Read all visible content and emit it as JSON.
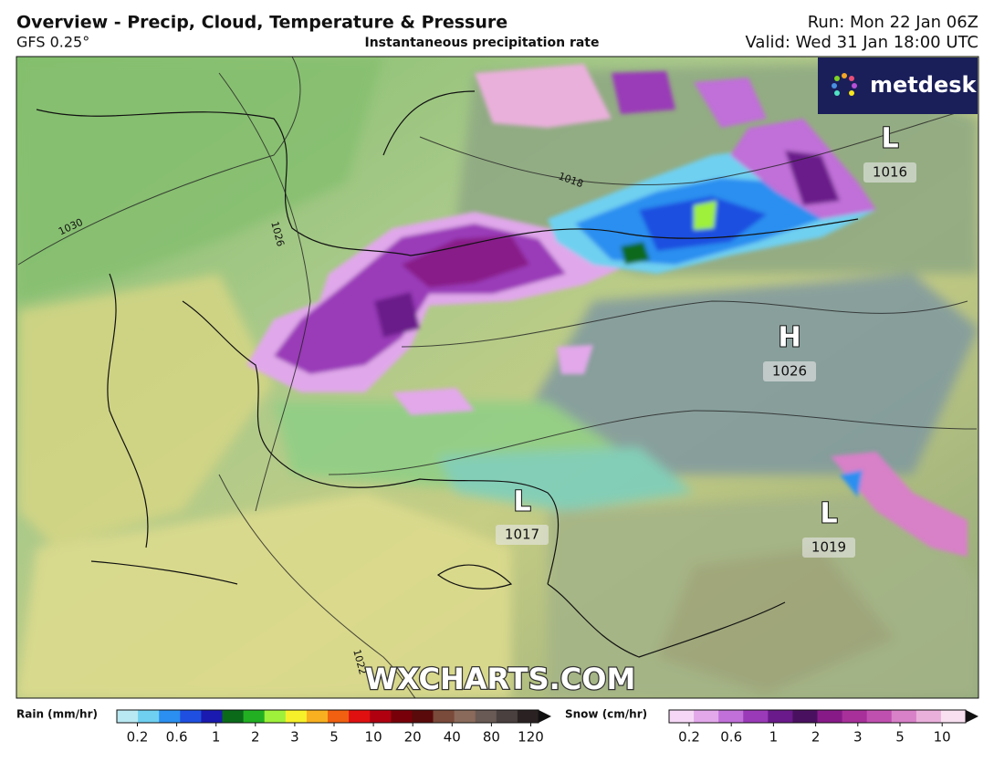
{
  "header": {
    "title": "Overview - Precip, Cloud, Temperature & Pressure",
    "model": "GFS 0.25°",
    "product": "Instantaneous precipitation rate",
    "run": "Run: Mon 22 Jan 06Z",
    "valid": "Valid: Wed 31 Jan 18:00 UTC"
  },
  "logo": "metdesk",
  "watermark": "WXCHARTS.COM",
  "pressure_centres": [
    {
      "letter": "L",
      "value": 1016
    },
    {
      "letter": "H",
      "value": 1026
    },
    {
      "letter": "L",
      "value": 1017
    },
    {
      "letter": "L",
      "value": 1019
    }
  ],
  "isobar_labels": [
    1030,
    1026,
    1018,
    1022
  ],
  "legend": {
    "rain": {
      "label": "Rain (mm/hr)",
      "ticks": [
        0.2,
        0.6,
        1,
        2,
        3,
        5,
        10,
        20,
        40,
        80,
        120
      ],
      "colors": [
        "#b9e9f2",
        "#6fd0f0",
        "#2a8ff0",
        "#1e4fe0",
        "#1a1ab0",
        "#0a6a1a",
        "#22b022",
        "#9ef03a",
        "#f6f02a",
        "#f8b020",
        "#f06010",
        "#e01010",
        "#b00010",
        "#780008",
        "#5a0a0a",
        "#7a4a3a",
        "#8a6a5a",
        "#6a5a55",
        "#4a4040",
        "#2a2222"
      ]
    },
    "snow": {
      "label": "Snow (cm/hr)",
      "ticks": [
        0.2,
        0.6,
        1,
        2,
        3,
        5,
        10
      ],
      "colors": [
        "#f6d8f6",
        "#e2a8ea",
        "#c070d8",
        "#9a3ab8",
        "#6a1a8a",
        "#4a1060",
        "#881a88",
        "#a8309a",
        "#c050b0",
        "#d880c8",
        "#eab0dc",
        "#f8e0f0"
      ]
    }
  }
}
